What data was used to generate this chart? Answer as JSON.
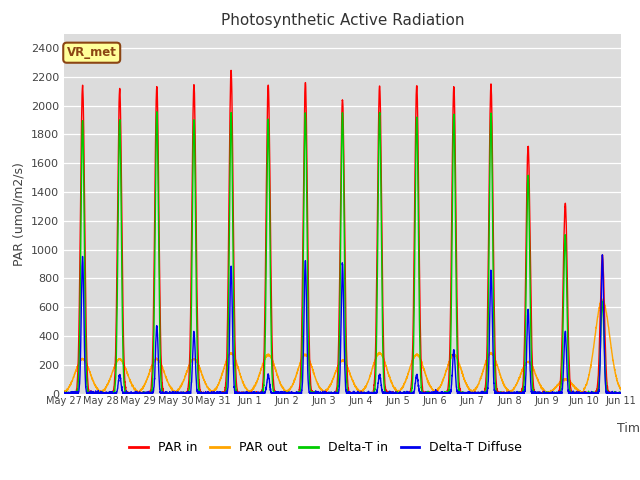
{
  "title": "Photosynthetic Active Radiation",
  "ylabel": "PAR (umol/m2/s)",
  "xlabel": "Time",
  "ylim": [
    0,
    2500
  ],
  "yticks": [
    0,
    200,
    400,
    600,
    800,
    1000,
    1200,
    1400,
    1600,
    1800,
    2000,
    2200,
    2400
  ],
  "colors": {
    "PAR in": "#FF0000",
    "PAR out": "#FFA500",
    "Delta-T in": "#00CC00",
    "Delta-T Diffuse": "#0000EE"
  },
  "bg_color": "#DCDCDC",
  "annotation_text": "VR_met",
  "annotation_bg": "#FFFF99",
  "annotation_border": "#8B4513",
  "n_days": 15,
  "tick_labels": [
    "May 27",
    "May 28",
    "May 29",
    "May 30",
    "May 31",
    "Jun 1",
    "Jun 2",
    "Jun 3",
    "Jun 4",
    "Jun 5",
    "Jun 6",
    "Jun 7",
    "Jun 8",
    "Jun 9",
    "Jun 10",
    "Jun 11"
  ],
  "peak_heights_par_in": [
    2140,
    2120,
    2130,
    2140,
    2240,
    2140,
    2160,
    2040,
    2140,
    2140,
    2130,
    2140,
    1720,
    1320,
    960
  ],
  "peak_heights_par_out": [
    240,
    240,
    240,
    240,
    280,
    270,
    270,
    230,
    280,
    270,
    270,
    280,
    220,
    100,
    650
  ],
  "peak_heights_delta_in": [
    1900,
    1900,
    1950,
    1900,
    1950,
    1900,
    1950,
    1950,
    1950,
    1920,
    1940,
    1950,
    1520,
    1100,
    640
  ],
  "peak_heights_delta_diffuse": [
    950,
    130,
    470,
    430,
    880,
    130,
    920,
    900,
    130,
    130,
    300,
    860,
    580,
    430,
    960
  ],
  "linewidth": 1.0
}
